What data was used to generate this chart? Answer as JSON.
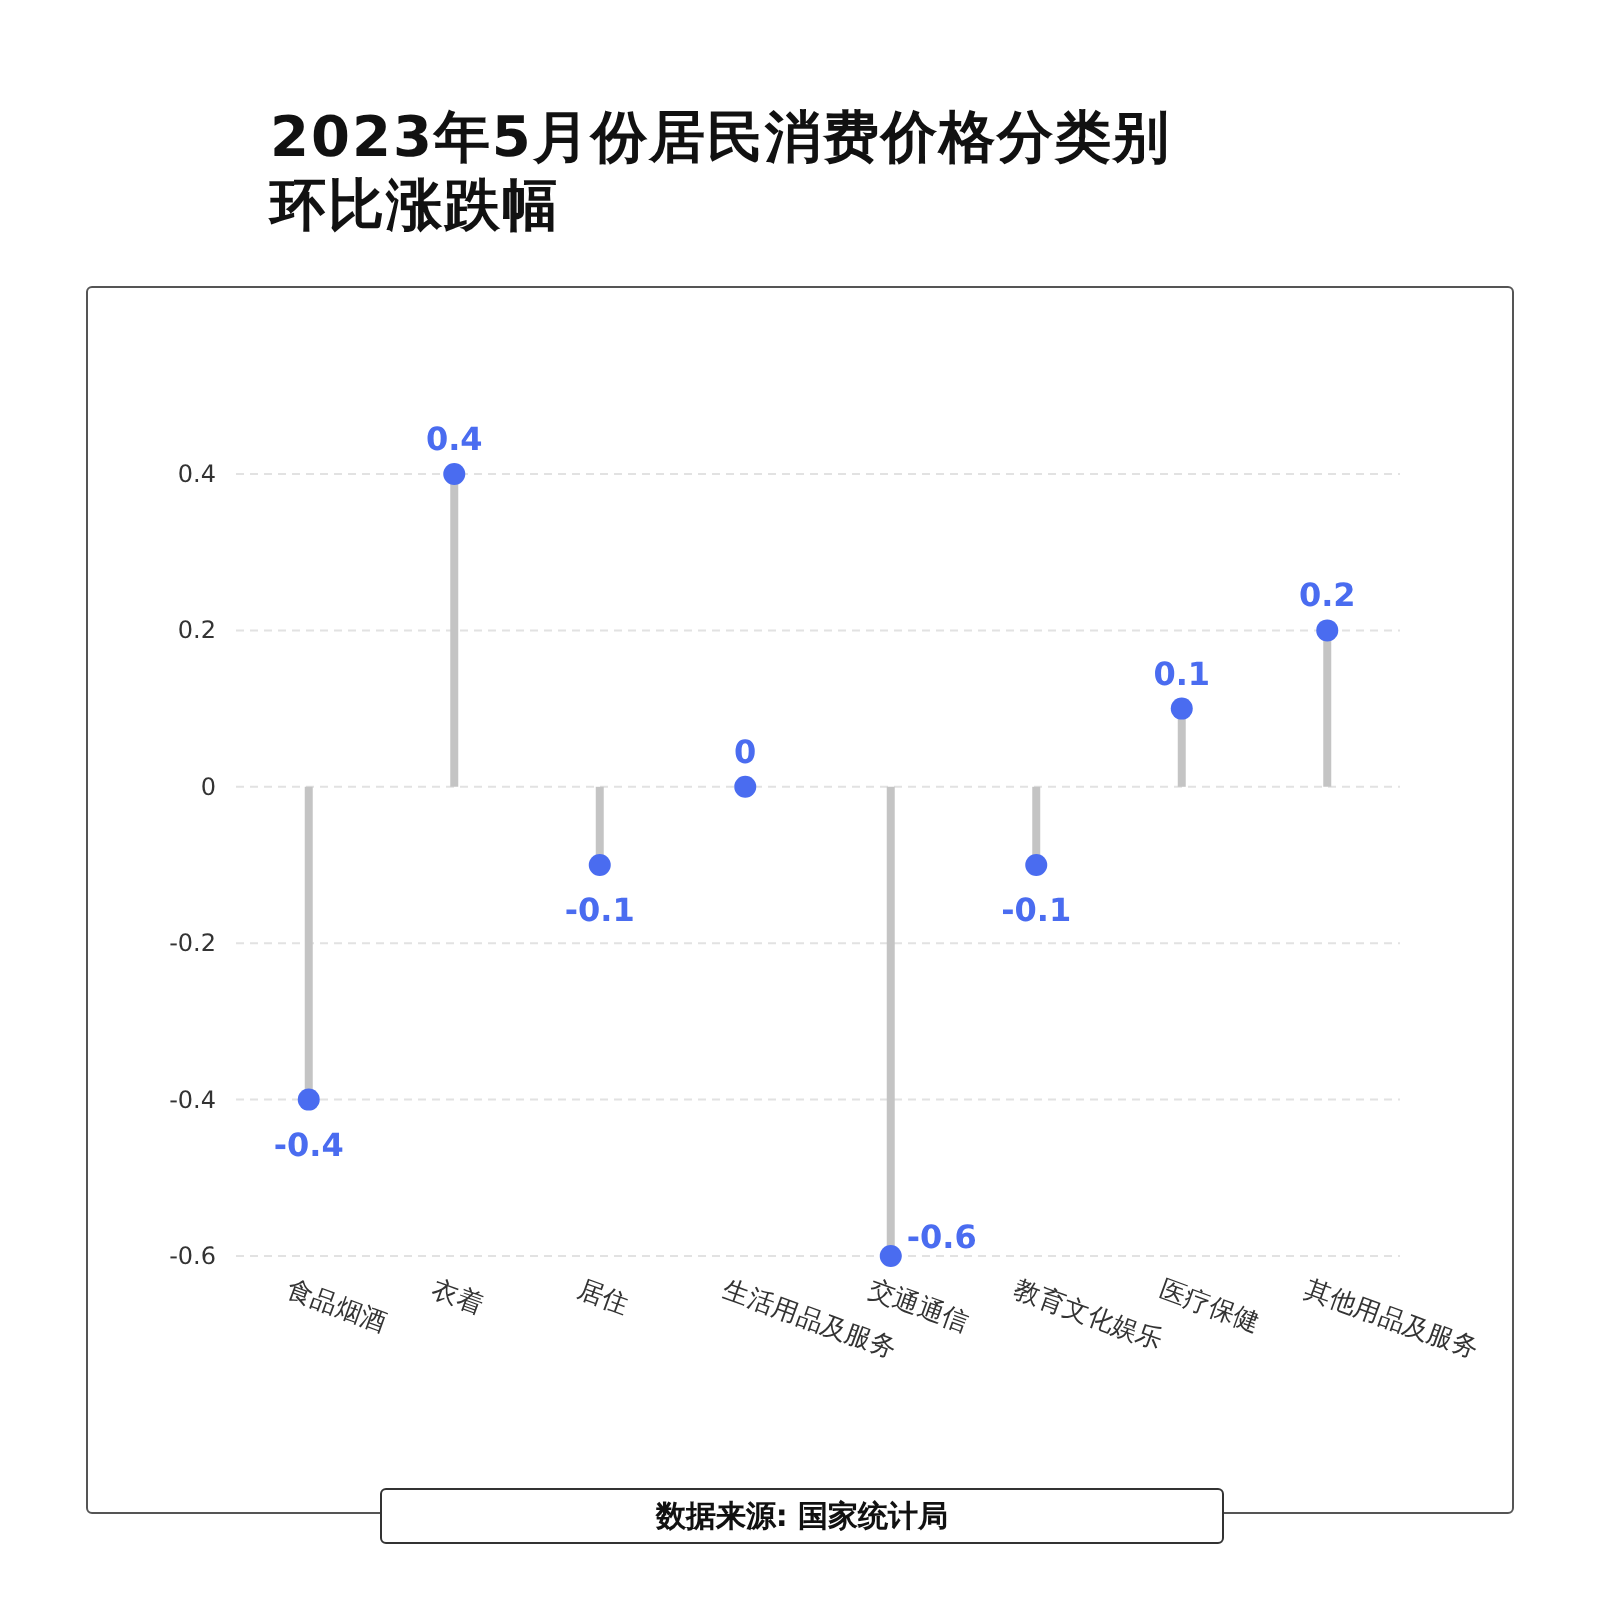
{
  "chart_data": {
    "type": "lollipop",
    "title": "2023年5月份居民消费价格分类别环比涨跌幅",
    "categories": [
      "食品烟酒",
      "衣着",
      "居住",
      "生活用品及服务",
      "交通通信",
      "教育文化娱乐",
      "医疗保健",
      "其他用品及服务"
    ],
    "values": [
      -0.4,
      0.4,
      -0.1,
      0,
      -0.6,
      -0.1,
      0.1,
      0.2
    ],
    "color": "#4a6cf0",
    "ylim": [
      -0.6,
      0.4
    ],
    "yticks": [
      -0.6,
      -0.4,
      -0.2,
      0,
      0.2,
      0.4
    ],
    "grid": "y",
    "data_labels": true,
    "marker": "circle",
    "annotations": [
      "数据来源: 国家统计局"
    ]
  }
}
